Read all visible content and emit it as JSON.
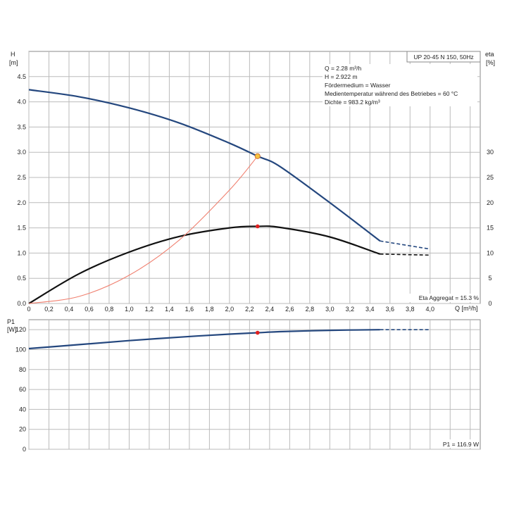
{
  "chart_data": [
    {
      "type": "line",
      "xlabel": "Q [m³/h]",
      "ylabel_top": "H",
      "ylabel_unit": "[m]",
      "y2label_top": "eta",
      "y2label_unit": "[%]",
      "xlim": [
        0,
        4.5
      ],
      "ylim": [
        0,
        5.0
      ],
      "y2lim": [
        0,
        50
      ],
      "x_ticks": [
        "0",
        "0,2",
        "0,4",
        "0,6",
        "0,8",
        "1,0",
        "1,2",
        "1,4",
        "1,6",
        "1,8",
        "2,0",
        "2,2",
        "2,4",
        "2,6",
        "2,8",
        "3,0",
        "3,2",
        "3,4",
        "3,6",
        "3,8",
        "4,0"
      ],
      "y_ticks": [
        "0.0",
        "0.5",
        "1.0",
        "1.5",
        "2.0",
        "2.5",
        "3.0",
        "3.5",
        "4.0",
        "4.5"
      ],
      "y2_ticks": [
        "0",
        "5",
        "10",
        "15",
        "20",
        "25",
        "30"
      ],
      "grid": true,
      "series": [
        {
          "axis": "left",
          "color": "#24477e",
          "x": [
            0,
            0.5,
            1.0,
            1.5,
            2.0,
            2.28,
            2.5,
            3.0,
            3.5
          ],
          "values": [
            4.24,
            4.1,
            3.88,
            3.58,
            3.18,
            2.922,
            2.72,
            2.0,
            1.24
          ],
          "dashed_x": [
            3.5,
            4.0
          ],
          "dashed_values": [
            1.24,
            1.08
          ]
        },
        {
          "axis": "right",
          "color": "#111111",
          "x": [
            0,
            0.5,
            1.0,
            1.5,
            2.0,
            2.28,
            2.5,
            3.0,
            3.5
          ],
          "values": [
            0,
            5.9,
            10.2,
            13.3,
            15.0,
            15.3,
            15.1,
            13.2,
            9.8
          ],
          "dashed_x": [
            3.5,
            4.0
          ],
          "dashed_values": [
            9.8,
            9.6
          ]
        },
        {
          "axis": "left",
          "color": "#f08070",
          "x": [
            0,
            0.5,
            1.0,
            1.5,
            2.0,
            2.28
          ],
          "values": [
            0,
            0.14,
            0.56,
            1.26,
            2.25,
            2.922
          ]
        }
      ],
      "operating_point": {
        "x": 2.28,
        "h": 2.922,
        "eta": 15.3
      },
      "legend_box": "UP 20-45 N 150, 50Hz",
      "info_lines": [
        "Q = 2.28 m³/h",
        "H = 2.922 m",
        "Fördermedium = Wasser",
        "Medientemperatur während des Betriebes = 60 °C",
        "Dichte = 983.2 kg/m³"
      ],
      "eta_label": "Eta Aggregat = 15.3 %"
    },
    {
      "type": "line",
      "ylabel_top": "P1",
      "ylabel_unit": "[W]",
      "xlim": [
        0,
        4.5
      ],
      "ylim": [
        0,
        130
      ],
      "y_ticks": [
        "0",
        "20",
        "40",
        "60",
        "80",
        "100",
        "120"
      ],
      "grid": true,
      "series": [
        {
          "color": "#24477e",
          "x": [
            0,
            0.5,
            1.0,
            1.5,
            2.0,
            2.28,
            2.5,
            3.0,
            3.5
          ],
          "values": [
            101,
            105,
            109,
            112.5,
            115.5,
            116.9,
            118,
            119.3,
            120
          ],
          "dashed_x": [
            3.5,
            4.0
          ],
          "dashed_values": [
            120,
            120
          ]
        }
      ],
      "operating_point": {
        "x": 2.28,
        "p1": 116.9
      },
      "p1_label": "P1 = 116.9 W"
    }
  ]
}
